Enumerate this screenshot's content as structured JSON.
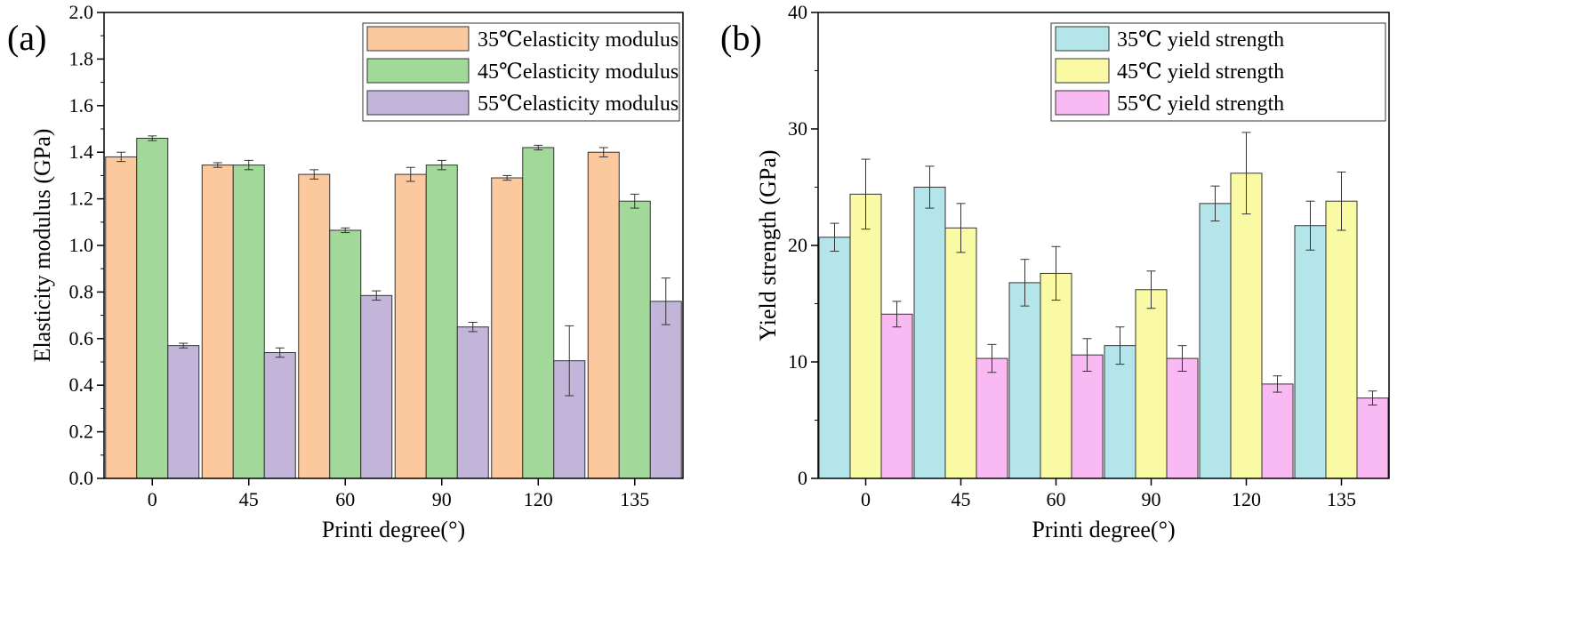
{
  "chart_data": [
    {
      "panel_label": "(a)",
      "type": "bar",
      "categories": [
        "0",
        "45",
        "60",
        "90",
        "120",
        "135"
      ],
      "xlabel": "Printi degree(°)",
      "ylabel": "Elasticity modulus (GPa)",
      "ylim": [
        0,
        2.0
      ],
      "yticks": [
        "0.0",
        "0.2",
        "0.4",
        "0.6",
        "0.8",
        "1.0",
        "1.2",
        "1.4",
        "1.6",
        "1.8",
        "2.0"
      ],
      "legend_position": "top-right",
      "series": [
        {
          "name": "35℃elasticity modulus",
          "color": "#fbc99d",
          "values": [
            1.38,
            1.345,
            1.305,
            1.305,
            1.29,
            1.4
          ],
          "errors": [
            0.02,
            0.01,
            0.02,
            0.03,
            0.01,
            0.02
          ]
        },
        {
          "name": "45℃elasticity modulus",
          "color": "#a2d99b",
          "values": [
            1.46,
            1.345,
            1.065,
            1.345,
            1.42,
            1.19
          ],
          "errors": [
            0.01,
            0.02,
            0.01,
            0.02,
            0.01,
            0.03
          ]
        },
        {
          "name": "55℃elasticity modulus",
          "color": "#c3b5da",
          "values": [
            0.57,
            0.54,
            0.785,
            0.65,
            0.505,
            0.76
          ],
          "errors": [
            0.01,
            0.02,
            0.02,
            0.02,
            0.15,
            0.1
          ]
        }
      ]
    },
    {
      "panel_label": "(b)",
      "type": "bar",
      "categories": [
        "0",
        "45",
        "60",
        "90",
        "120",
        "135"
      ],
      "xlabel": "Printi degree(°)",
      "ylabel": "Yield strength (GPa)",
      "ylim": [
        0,
        40
      ],
      "yticks": [
        "0",
        "10",
        "20",
        "30",
        "40"
      ],
      "legend_position": "top-right",
      "series": [
        {
          "name": "35℃  yield strength",
          "color": "#b3e5ea",
          "values": [
            20.7,
            25.0,
            16.8,
            11.4,
            23.6,
            21.7
          ],
          "errors": [
            1.2,
            1.8,
            2.0,
            1.6,
            1.5,
            2.1
          ]
        },
        {
          "name": "45℃  yield strength",
          "color": "#fafaa4",
          "values": [
            24.4,
            21.5,
            17.6,
            16.2,
            26.2,
            23.8
          ],
          "errors": [
            3.0,
            2.1,
            2.3,
            1.6,
            3.5,
            2.5
          ]
        },
        {
          "name": "55℃  yield strength",
          "color": "#f9b9f3",
          "values": [
            14.1,
            10.3,
            10.6,
            10.3,
            8.1,
            6.9
          ],
          "errors": [
            1.1,
            1.2,
            1.4,
            1.1,
            0.7,
            0.6
          ]
        }
      ]
    }
  ]
}
